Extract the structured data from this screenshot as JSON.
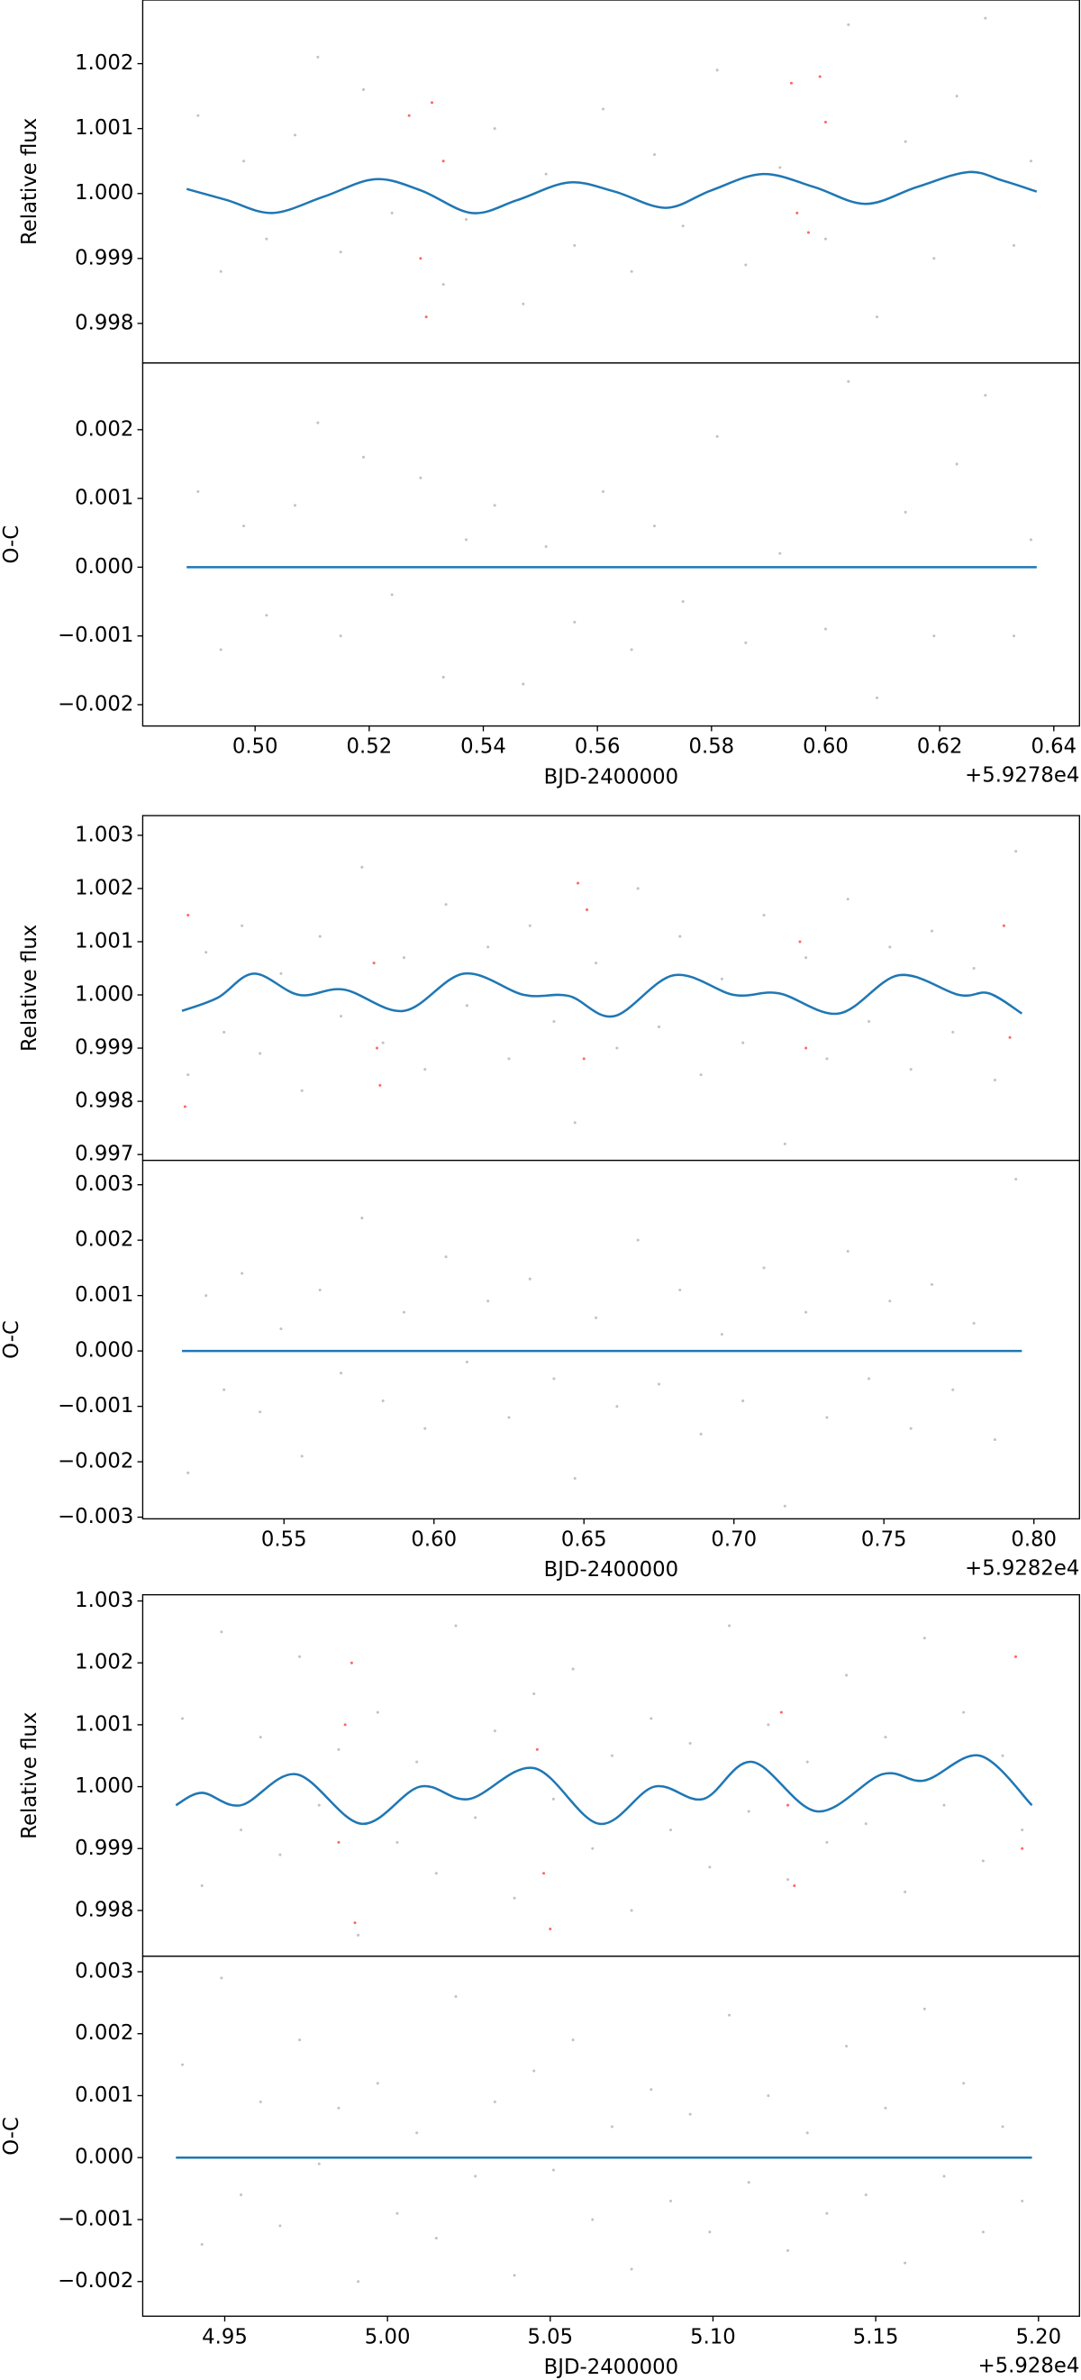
{
  "chart_data": [
    {
      "type": "scatter",
      "ylabel": "Relative flux",
      "xlim": [
        0.4803,
        0.6445
      ],
      "ylim": [
        0.99739,
        1.00298
      ],
      "yticks": [
        0.998,
        0.999,
        {
          "value": 1,
          "label": "1.000"
        },
        1.001,
        1.002
      ],
      "series": [
        {
          "mode": "markers",
          "color": "#999999",
          "x": [
            0.49,
            0.494,
            0.498,
            0.502,
            0.507,
            0.511,
            0.515,
            0.519,
            0.524,
            0.533,
            0.537,
            0.542,
            0.547,
            0.551,
            0.556,
            0.561,
            0.566,
            0.57,
            0.575,
            0.581,
            0.586,
            0.592,
            0.6,
            0.604,
            0.609,
            0.614,
            0.619,
            0.623,
            0.628,
            0.633,
            0.636
          ],
          "values": [
            1.0012,
            0.9988,
            1.0005,
            0.9993,
            1.0009,
            1.0021,
            0.9991,
            1.0016,
            0.9997,
            0.9986,
            0.9996,
            1.001,
            0.9983,
            1.0003,
            0.9992,
            1.0013,
            0.9988,
            1.0006,
            0.9995,
            1.0019,
            0.9989,
            1.0004,
            0.9993,
            1.0026,
            0.9981,
            1.0008,
            0.999,
            1.0015,
            1.0027,
            0.9992,
            1.0005
          ]
        },
        {
          "mode": "markers",
          "color": "#ff0000",
          "x": [
            0.527,
            0.529,
            0.53,
            0.531,
            0.533,
            0.594,
            0.595,
            0.597,
            0.599,
            0.6
          ],
          "values": [
            1.0012,
            0.999,
            0.9981,
            1.0014,
            1.0005,
            1.0017,
            0.9997,
            0.9994,
            1.0018,
            1.0011
          ]
        },
        {
          "mode": "line",
          "color": "#1f77b4",
          "x": [
            0.488,
            0.495,
            0.503,
            0.512,
            0.521,
            0.529,
            0.538,
            0.546,
            0.555,
            0.563,
            0.572,
            0.58,
            0.589,
            0.598,
            0.607,
            0.616,
            0.625,
            0.631,
            0.637
          ],
          "values": [
            1.00007,
            0.9999,
            0.9997,
            0.99995,
            1.00022,
            1.00005,
            0.9997,
            0.9999,
            1.00017,
            1.00003,
            0.99978,
            1.00005,
            1.0003,
            1.0001,
            0.99984,
            1.0001,
            1.00033,
            1.0002,
            1.00003
          ]
        }
      ]
    },
    {
      "type": "scatter",
      "ylabel": "O-C",
      "xlabel": "BJD-2400000",
      "x_offset_label": "+5.9278e4",
      "xlim": [
        0.4803,
        0.6445
      ],
      "ylim": [
        -0.00231,
        0.00297
      ],
      "xticks": [
        {
          "value": 0.5,
          "label": "0.50"
        },
        0.52,
        0.54,
        0.56,
        0.58,
        {
          "value": 0.6,
          "label": "0.60"
        },
        0.62,
        0.64
      ],
      "yticks": [
        {
          "value": -0.002,
          "label": "−0.002"
        },
        {
          "value": -0.001,
          "label": "−0.001"
        },
        {
          "value": 0,
          "label": "0.000"
        },
        0.001,
        0.002
      ],
      "series": [
        {
          "mode": "markers",
          "color": "#999999",
          "x": [
            0.49,
            0.494,
            0.498,
            0.502,
            0.507,
            0.511,
            0.515,
            0.519,
            0.524,
            0.529,
            0.533,
            0.537,
            0.542,
            0.547,
            0.551,
            0.556,
            0.561,
            0.566,
            0.57,
            0.575,
            0.581,
            0.586,
            0.592,
            0.6,
            0.604,
            0.609,
            0.614,
            0.619,
            0.623,
            0.628,
            0.633,
            0.636
          ],
          "values": [
            0.0011,
            -0.0012,
            0.0006,
            -0.0007,
            0.0009,
            0.0021,
            -0.001,
            0.0016,
            -0.0004,
            0.0013,
            -0.0016,
            0.0004,
            0.0009,
            -0.0017,
            0.0003,
            -0.0008,
            0.0011,
            -0.0012,
            0.0006,
            -0.0005,
            0.0019,
            -0.0011,
            0.0002,
            -0.0009,
            0.0027,
            -0.0019,
            0.0008,
            -0.001,
            0.0015,
            0.0025,
            -0.001,
            0.0004
          ]
        },
        {
          "mode": "line",
          "color": "#1f77b4",
          "x": [
            0.488,
            0.637
          ],
          "values": [
            0,
            0
          ]
        }
      ]
    },
    {
      "type": "scatter",
      "ylabel": "Relative flux",
      "xlim": [
        0.5029,
        0.8152
      ],
      "ylim": [
        0.99689,
        1.00337
      ],
      "yticks": [
        0.997,
        0.998,
        0.999,
        {
          "value": 1,
          "label": "1.000"
        },
        1.001,
        1.002,
        1.003
      ],
      "series": [
        {
          "mode": "markers",
          "color": "#999999",
          "x": [
            0.518,
            0.524,
            0.53,
            0.536,
            0.542,
            0.549,
            0.556,
            0.562,
            0.569,
            0.576,
            0.583,
            0.59,
            0.597,
            0.604,
            0.611,
            0.618,
            0.625,
            0.632,
            0.64,
            0.647,
            0.654,
            0.661,
            0.668,
            0.675,
            0.682,
            0.689,
            0.696,
            0.703,
            0.71,
            0.717,
            0.724,
            0.731,
            0.738,
            0.745,
            0.752,
            0.759,
            0.766,
            0.773,
            0.78,
            0.787,
            0.794
          ],
          "values": [
            0.9985,
            1.0008,
            0.9993,
            1.0013,
            0.9989,
            1.0004,
            0.9982,
            1.0011,
            0.9996,
            1.0024,
            0.9991,
            1.0007,
            0.9986,
            1.0017,
            0.9998,
            1.0009,
            0.9988,
            1.0013,
            0.9995,
            0.9976,
            1.0006,
            0.999,
            1.002,
            0.9994,
            1.0011,
            0.9985,
            1.0003,
            0.9991,
            1.0015,
            0.9972,
            1.0007,
            0.9988,
            1.0018,
            0.9995,
            1.0009,
            0.9986,
            1.0012,
            0.9993,
            1.0005,
            0.9984,
            1.0027
          ]
        },
        {
          "mode": "markers",
          "color": "#ff0000",
          "x": [
            0.517,
            0.518,
            0.58,
            0.581,
            0.582,
            0.648,
            0.65,
            0.651,
            0.722,
            0.724,
            0.79,
            0.792
          ],
          "values": [
            0.9979,
            1.0015,
            1.0006,
            0.999,
            0.9983,
            1.0021,
            0.9988,
            1.0016,
            1.001,
            0.999,
            1.0013,
            0.9992
          ]
        },
        {
          "mode": "line",
          "color": "#1f77b4",
          "x": [
            0.516,
            0.528,
            0.54,
            0.555,
            0.57,
            0.59,
            0.61,
            0.63,
            0.645,
            0.66,
            0.68,
            0.7,
            0.715,
            0.735,
            0.755,
            0.775,
            0.785,
            0.796
          ],
          "values": [
            0.9997,
            0.99995,
            1.0004,
            1.0,
            1.0001,
            0.9997,
            1.0004,
            1.0,
            0.99998,
            0.9996,
            1.00037,
            1.0,
            1.00003,
            0.99965,
            1.00037,
            1.0,
            1.00003,
            0.99965
          ]
        }
      ]
    },
    {
      "type": "scatter",
      "ylabel": "O-C",
      "xlabel": "BJD-2400000",
      "x_offset_label": "+5.9282e4",
      "xlim": [
        0.5029,
        0.8152
      ],
      "ylim": [
        -0.00303,
        0.00344
      ],
      "xticks": [
        0.55,
        {
          "value": 0.6,
          "label": "0.60"
        },
        0.65,
        {
          "value": 0.7,
          "label": "0.70"
        },
        0.75,
        {
          "value": 0.8,
          "label": "0.80"
        }
      ],
      "yticks": [
        {
          "value": -0.003,
          "label": "−0.003"
        },
        {
          "value": -0.002,
          "label": "−0.002"
        },
        {
          "value": -0.001,
          "label": "−0.001"
        },
        {
          "value": 0,
          "label": "0.000"
        },
        0.001,
        0.002,
        0.003
      ],
      "series": [
        {
          "mode": "markers",
          "color": "#999999",
          "x": [
            0.518,
            0.524,
            0.53,
            0.536,
            0.542,
            0.549,
            0.556,
            0.562,
            0.569,
            0.576,
            0.583,
            0.59,
            0.597,
            0.604,
            0.611,
            0.618,
            0.625,
            0.632,
            0.64,
            0.647,
            0.654,
            0.661,
            0.668,
            0.675,
            0.682,
            0.689,
            0.696,
            0.703,
            0.71,
            0.717,
            0.724,
            0.731,
            0.738,
            0.745,
            0.752,
            0.759,
            0.766,
            0.773,
            0.78,
            0.787,
            0.794
          ],
          "values": [
            -0.0022,
            0.001,
            -0.0007,
            0.0014,
            -0.0011,
            0.0004,
            -0.0019,
            0.0011,
            -0.0004,
            0.0024,
            -0.0009,
            0.0007,
            -0.0014,
            0.0017,
            -0.0002,
            0.0009,
            -0.0012,
            0.0013,
            -0.0005,
            -0.0023,
            0.0006,
            -0.001,
            0.002,
            -0.0006,
            0.0011,
            -0.0015,
            0.0003,
            -0.0009,
            0.0015,
            -0.0028,
            0.0007,
            -0.0012,
            0.0018,
            -0.0005,
            0.0009,
            -0.0014,
            0.0012,
            -0.0007,
            0.0005,
            -0.0016,
            0.0031
          ]
        },
        {
          "mode": "line",
          "color": "#1f77b4",
          "x": [
            0.516,
            0.796
          ],
          "values": [
            0,
            0
          ]
        }
      ]
    },
    {
      "type": "scatter",
      "ylabel": "Relative flux",
      "xlim": [
        4.9248,
        5.2126
      ],
      "ylim": [
        0.99726,
        1.0031
      ],
      "yticks": [
        0.998,
        0.999,
        {
          "value": 1,
          "label": "1.000"
        },
        1.001,
        1.002,
        1.003
      ],
      "series": [
        {
          "mode": "markers",
          "color": "#999999",
          "x": [
            4.937,
            4.943,
            4.949,
            4.955,
            4.961,
            4.967,
            4.973,
            4.979,
            4.985,
            4.991,
            4.997,
            5.003,
            5.009,
            5.015,
            5.021,
            5.027,
            5.033,
            5.039,
            5.045,
            5.051,
            5.057,
            5.063,
            5.069,
            5.075,
            5.081,
            5.087,
            5.093,
            5.099,
            5.105,
            5.111,
            5.117,
            5.123,
            5.129,
            5.135,
            5.141,
            5.147,
            5.153,
            5.159,
            5.165,
            5.171,
            5.177,
            5.183,
            5.189,
            5.195
          ],
          "values": [
            1.0011,
            0.9984,
            1.0025,
            0.9993,
            1.0008,
            0.9989,
            1.0021,
            0.9997,
            1.0006,
            0.9976,
            1.0012,
            0.9991,
            1.0004,
            0.9986,
            1.0026,
            0.9995,
            1.0009,
            0.9982,
            1.0015,
            0.9998,
            1.0019,
            0.999,
            1.0005,
            0.998,
            1.0011,
            0.9993,
            1.0007,
            0.9987,
            1.0026,
            0.9996,
            1.001,
            0.9985,
            1.0004,
            0.9991,
            1.0018,
            0.9994,
            1.0008,
            0.9983,
            1.0024,
            0.9997,
            1.0012,
            0.9988,
            1.0005,
            0.9993
          ]
        },
        {
          "mode": "markers",
          "color": "#ff0000",
          "x": [
            4.985,
            4.987,
            4.989,
            4.99,
            5.046,
            5.048,
            5.05,
            5.121,
            5.123,
            5.125,
            5.193,
            5.195
          ],
          "values": [
            0.9991,
            1.001,
            1.002,
            0.9978,
            1.0006,
            0.9986,
            0.9977,
            1.0012,
            0.9997,
            0.9984,
            1.0021,
            0.999
          ]
        },
        {
          "mode": "line",
          "color": "#1f77b4",
          "x": [
            4.935,
            4.943,
            4.955,
            4.972,
            4.992,
            5.01,
            5.025,
            5.045,
            5.065,
            5.082,
            5.097,
            5.112,
            5.132,
            5.152,
            5.165,
            5.182,
            5.198
          ],
          "values": [
            0.9997,
            0.9999,
            0.9997,
            1.0002,
            0.9994,
            1.0,
            0.9998,
            1.0003,
            0.9994,
            1.0,
            0.9998,
            1.0004,
            0.9996,
            1.0002,
            1.0001,
            1.0005,
            0.9997
          ]
        }
      ]
    },
    {
      "type": "scatter",
      "ylabel": "O-C",
      "xlabel": "BJD-2400000",
      "x_offset_label": "+5.928e4",
      "xlim": [
        4.9248,
        5.2126
      ],
      "ylim": [
        -0.00256,
        0.00325
      ],
      "xticks": [
        4.95,
        {
          "value": 5,
          "label": "5.00"
        },
        5.05,
        {
          "value": 5.1,
          "label": "5.10"
        },
        5.15,
        {
          "value": 5.2,
          "label": "5.20"
        }
      ],
      "yticks": [
        {
          "value": -0.002,
          "label": "−0.002"
        },
        {
          "value": -0.001,
          "label": "−0.001"
        },
        {
          "value": 0,
          "label": "0.000"
        },
        0.001,
        0.002,
        0.003
      ],
      "series": [
        {
          "mode": "markers",
          "color": "#999999",
          "x": [
            4.937,
            4.943,
            4.949,
            4.955,
            4.961,
            4.967,
            4.973,
            4.979,
            4.985,
            4.991,
            4.997,
            5.003,
            5.009,
            5.015,
            5.021,
            5.027,
            5.033,
            5.039,
            5.045,
            5.051,
            5.057,
            5.063,
            5.069,
            5.075,
            5.081,
            5.087,
            5.093,
            5.099,
            5.105,
            5.111,
            5.117,
            5.123,
            5.129,
            5.135,
            5.141,
            5.147,
            5.153,
            5.159,
            5.165,
            5.171,
            5.177,
            5.183,
            5.189,
            5.195
          ],
          "values": [
            0.0015,
            -0.0014,
            0.0029,
            -0.0006,
            0.0009,
            -0.0011,
            0.0019,
            -0.0001,
            0.0008,
            -0.002,
            0.0012,
            -0.0009,
            0.0004,
            -0.0013,
            0.0026,
            -0.0003,
            0.0009,
            -0.0019,
            0.0014,
            -0.0002,
            0.0019,
            -0.001,
            0.0005,
            -0.0018,
            0.0011,
            -0.0007,
            0.0007,
            -0.0012,
            0.0023,
            -0.0004,
            0.001,
            -0.0015,
            0.0004,
            -0.0009,
            0.0018,
            -0.0006,
            0.0008,
            -0.0017,
            0.0024,
            -0.0003,
            0.0012,
            -0.0012,
            0.0005,
            -0.0007
          ]
        },
        {
          "mode": "line",
          "color": "#1f77b4",
          "x": [
            4.935,
            5.198
          ],
          "values": [
            0,
            0
          ]
        }
      ]
    }
  ]
}
